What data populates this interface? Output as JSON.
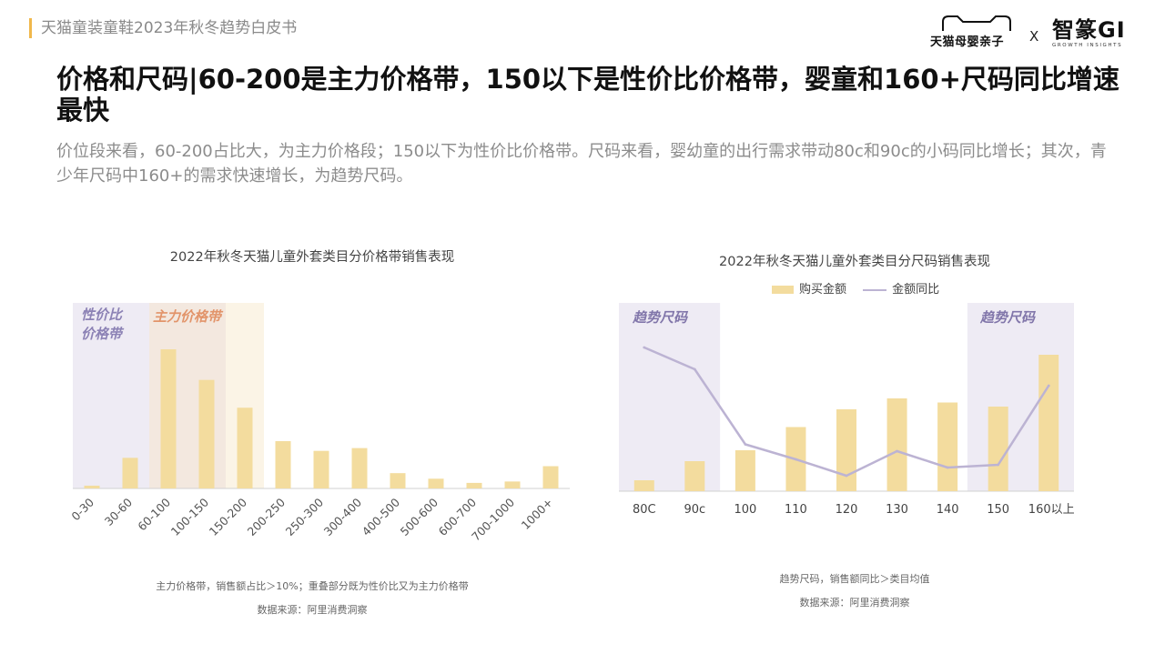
{
  "header": {
    "report_title": "天猫童装童鞋2023年秋冬趋势白皮书",
    "brand_tmall": "天猫母婴亲子",
    "brand_x": "X",
    "brand_gi_main": "智篆GI",
    "brand_gi_sub": "GROWTH INSIGHTS"
  },
  "headline": "价格和尺码|60-200是主力价格带，150以下是性价比价格带，婴童和160+尺码同比增速最快",
  "subtext": "价位段来看，60-200占比大，为主力价格段；150以下为性价比价格带。尺码来看，婴幼童的出行需求带动80c和90c的小码同比增长；其次，青少年尺码中160+的需求快速增长，为趋势尺码。",
  "colors": {
    "bar": "#f3dc9e",
    "line": "#bcb3d3",
    "value_zone": "#eeebf4",
    "main_zone": "#f3e8df",
    "main_zone_light": "#fbf4e6",
    "value_label": "#8c82b5",
    "main_label": "#e2946a",
    "trend_label": "#8176aa"
  },
  "chart_data": [
    {
      "type": "bar",
      "title": "2022年秋冬天猫儿童外套类目分价格带销售表现",
      "categories": [
        "0-30",
        "30-60",
        "60-100",
        "100-150",
        "150-200",
        "200-250",
        "250-300",
        "300-400",
        "400-500",
        "500-600",
        "600-700",
        "700-1000",
        "1000+"
      ],
      "values": [
        2,
        22,
        100,
        78,
        58,
        34,
        27,
        29,
        11,
        7,
        4,
        5,
        16
      ],
      "ylim": [
        0,
        100
      ],
      "xlabel": "",
      "ylabel": "",
      "value_zone_label": "性价比价格带",
      "main_zone_label": "主力价格带",
      "value_zone_range": [
        "0-30",
        "100-150"
      ],
      "main_zone_range": [
        "60-100",
        "150-200"
      ],
      "note": "主力价格带，销售额占比＞10%；重叠部分既为性价比又为主力价格带",
      "source": "数据来源：阿里消费洞察"
    },
    {
      "type": "bar+line",
      "title": "2022年秋冬天猫儿童外套类目分尺码销售表现",
      "categories": [
        "80C",
        "90c",
        "100",
        "110",
        "120",
        "130",
        "140",
        "150",
        "160以上"
      ],
      "series": [
        {
          "name": "购买金额",
          "type": "bar",
          "values": [
            8,
            22,
            30,
            47,
            60,
            68,
            65,
            62,
            100
          ]
        },
        {
          "name": "金额同比",
          "type": "line",
          "values": [
            100,
            84,
            29,
            18,
            6,
            24,
            12,
            14,
            72
          ]
        }
      ],
      "ylim": [
        0,
        100
      ],
      "trend_zone_label": "趋势尺码",
      "trend_zones": [
        [
          "80C",
          "90c"
        ],
        [
          "150",
          "160以上"
        ]
      ],
      "note": "趋势尺码，销售额同比＞类目均值",
      "source": "数据来源：阿里消费洞察"
    }
  ]
}
